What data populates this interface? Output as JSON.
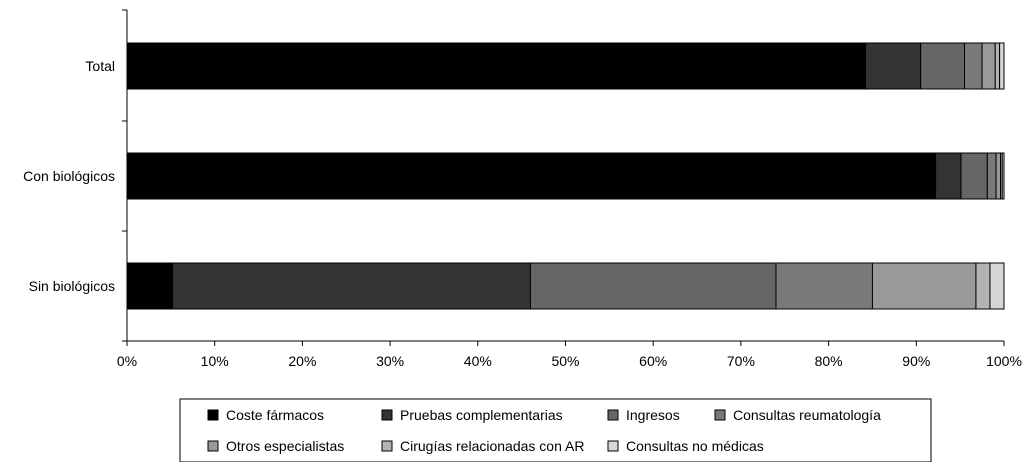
{
  "chart_data": {
    "type": "bar",
    "orientation": "horizontal",
    "stacked": "percent",
    "categories": [
      "Total",
      "Con biológicos",
      "Sin biológicos"
    ],
    "xticks": [
      "0%",
      "10%",
      "20%",
      "30%",
      "40%",
      "50%",
      "60%",
      "70%",
      "80%",
      "90%",
      "100%"
    ],
    "xlim": [
      0,
      100
    ],
    "grid": false,
    "legend_position": "bottom",
    "series": [
      {
        "name": "Coste fármacos",
        "color": "#000000",
        "values": [
          84.2,
          92.2,
          5.2
        ]
      },
      {
        "name": "Pruebas complementarias",
        "color": "#333333",
        "values": [
          6.3,
          2.9,
          40.8
        ]
      },
      {
        "name": "Ingresos",
        "color": "#666666",
        "values": [
          5.0,
          3.0,
          28.0
        ]
      },
      {
        "name": "Consultas reumatología",
        "color": "#7a7a7a",
        "values": [
          2.0,
          1.0,
          11.0
        ]
      },
      {
        "name": "Otros especialistas",
        "color": "#999999",
        "values": [
          1.5,
          0.5,
          11.8
        ]
      },
      {
        "name": "Cirugías relacionadas con AR",
        "color": "#b3b3b3",
        "values": [
          0.5,
          0.2,
          1.6
        ]
      },
      {
        "name": "Consultas no médicas",
        "color": "#d6d6d6",
        "values": [
          0.5,
          0.2,
          1.6
        ]
      }
    ]
  }
}
